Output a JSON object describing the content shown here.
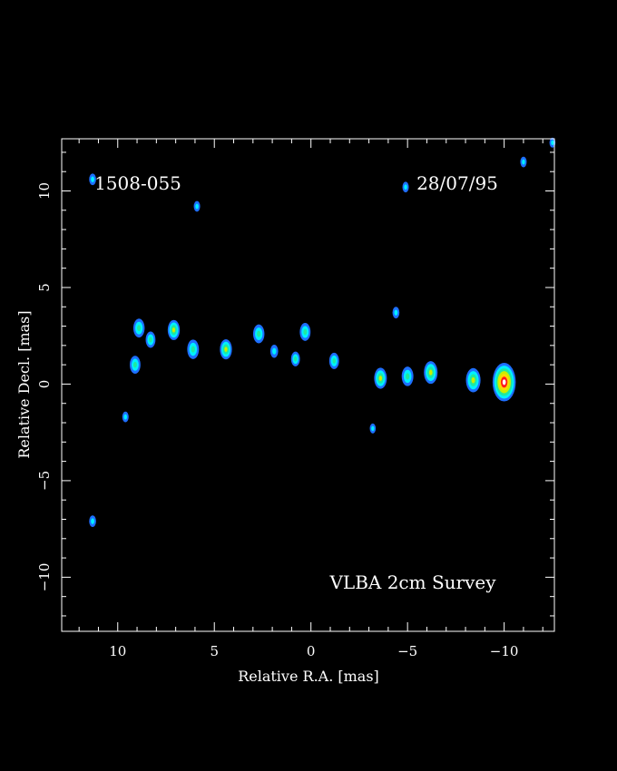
{
  "chart_data": {
    "type": "heatmap",
    "annotations": {
      "source": "1508-055",
      "date": "28/07/95",
      "survey": "VLBA 2cm Survey"
    },
    "xlabel": "Relative R.A. [mas]",
    "ylabel": "Relative Decl. [mas]",
    "xlim": [
      12.9,
      -12.6
    ],
    "ylim": [
      -12.8,
      12.7
    ],
    "xticks": [
      10,
      5,
      0,
      -5,
      -10
    ],
    "yticks": [
      10,
      5,
      0,
      -5,
      -10
    ],
    "xtick_labels": [
      "10",
      "5",
      "0",
      "−5",
      "−10"
    ],
    "ytick_labels": [
      "10",
      "5",
      "0",
      "−5",
      "−10"
    ],
    "colorscale": [
      "#1e6fff",
      "#00f0ff",
      "#20e8a0",
      "#c8f000",
      "#ffd800",
      "#ff1a1a",
      "#ffffff"
    ],
    "components": [
      {
        "x": -10.0,
        "y": 0.1,
        "peak": 1.0
      },
      {
        "x": -8.4,
        "y": 0.2,
        "peak": 0.55
      },
      {
        "x": -6.2,
        "y": 0.6,
        "peak": 0.5
      },
      {
        "x": -5.0,
        "y": 0.4,
        "peak": 0.4
      },
      {
        "x": -3.6,
        "y": 0.3,
        "peak": 0.45
      },
      {
        "x": -4.4,
        "y": 3.7,
        "peak": 0.15
      },
      {
        "x": -1.2,
        "y": 1.2,
        "peak": 0.3
      },
      {
        "x": 0.3,
        "y": 2.7,
        "peak": 0.35
      },
      {
        "x": 0.8,
        "y": 1.3,
        "peak": 0.25
      },
      {
        "x": 1.9,
        "y": 1.7,
        "peak": 0.2
      },
      {
        "x": 2.7,
        "y": 2.6,
        "peak": 0.38
      },
      {
        "x": 4.4,
        "y": 1.8,
        "peak": 0.42
      },
      {
        "x": 6.1,
        "y": 1.8,
        "peak": 0.4
      },
      {
        "x": 7.1,
        "y": 2.8,
        "peak": 0.42
      },
      {
        "x": 8.9,
        "y": 2.9,
        "peak": 0.38
      },
      {
        "x": 9.1,
        "y": 1.0,
        "peak": 0.35
      },
      {
        "x": 8.3,
        "y": 2.3,
        "peak": 0.3
      },
      {
        "x": 9.6,
        "y": -1.7,
        "peak": 0.12
      },
      {
        "x": 11.3,
        "y": -7.1,
        "peak": 0.15
      },
      {
        "x": 11.3,
        "y": 10.6,
        "peak": 0.15
      },
      {
        "x": 5.9,
        "y": 9.2,
        "peak": 0.12
      },
      {
        "x": -4.9,
        "y": 10.2,
        "peak": 0.12
      },
      {
        "x": -11.0,
        "y": 11.5,
        "peak": 0.12
      },
      {
        "x": -12.5,
        "y": 12.5,
        "peak": 0.1
      },
      {
        "x": -3.2,
        "y": -2.3,
        "peak": 0.1
      }
    ]
  }
}
